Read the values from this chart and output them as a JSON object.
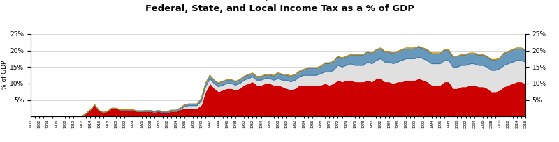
{
  "title": "Federal, State, and Local Income Tax as a % of GDP",
  "ylabel": "% of GDP",
  "ylim": [
    0,
    25
  ],
  "year_start": 1900,
  "year_end": 2016,
  "colors": {
    "federal_income": "#CC0000",
    "federal_payroll": "#E0E0E0",
    "state_income": "#4477AA",
    "local_income": "#E8A830"
  },
  "federal_income": [
    0.0,
    0.0,
    0.0,
    0.1,
    0.1,
    0.1,
    0.1,
    0.1,
    0.1,
    0.1,
    0.1,
    0.1,
    0.1,
    0.9,
    2.0,
    3.5,
    1.8,
    1.2,
    1.5,
    2.5,
    2.5,
    2.0,
    2.0,
    2.0,
    1.8,
    1.5,
    1.5,
    1.5,
    1.5,
    1.3,
    1.5,
    1.2,
    1.2,
    1.5,
    1.5,
    2.0,
    2.5,
    2.5,
    2.5,
    2.5,
    3.5,
    7.5,
    10.0,
    8.5,
    7.5,
    8.0,
    8.5,
    8.5,
    8.0,
    8.5,
    9.5,
    10.0,
    10.5,
    9.5,
    9.5,
    10.0,
    10.0,
    9.5,
    9.5,
    9.0,
    8.5,
    8.0,
    8.5,
    9.5,
    9.5,
    9.5,
    9.5,
    9.5,
    9.5,
    10.0,
    9.5,
    10.0,
    11.0,
    10.5,
    11.0,
    11.0,
    10.5,
    10.5,
    10.5,
    11.0,
    10.5,
    11.5,
    11.5,
    10.5,
    10.5,
    10.0,
    10.5,
    10.5,
    11.0,
    11.0,
    11.0,
    11.5,
    11.0,
    10.5,
    9.5,
    9.5,
    9.5,
    10.5,
    10.5,
    8.5,
    8.5,
    9.0,
    9.0,
    9.5,
    9.5,
    9.0,
    9.0,
    8.5,
    7.5,
    7.5,
    8.0,
    9.0,
    9.5,
    10.0,
    10.5,
    10.5,
    10.0
  ],
  "federal_payroll": [
    0.0,
    0.0,
    0.0,
    0.0,
    0.0,
    0.0,
    0.0,
    0.0,
    0.0,
    0.0,
    0.0,
    0.0,
    0.0,
    0.0,
    0.0,
    0.0,
    0.0,
    0.0,
    0.0,
    0.0,
    0.0,
    0.0,
    0.0,
    0.0,
    0.0,
    0.0,
    0.0,
    0.0,
    0.0,
    0.0,
    0.0,
    0.0,
    0.0,
    0.0,
    0.0,
    0.0,
    0.5,
    0.8,
    0.8,
    0.8,
    1.2,
    1.5,
    1.5,
    1.5,
    1.5,
    1.5,
    1.5,
    1.5,
    1.5,
    1.5,
    1.5,
    1.5,
    1.5,
    1.5,
    1.5,
    1.5,
    1.5,
    1.5,
    2.0,
    2.0,
    2.5,
    2.5,
    2.5,
    2.5,
    3.0,
    3.0,
    3.0,
    3.0,
    3.5,
    3.5,
    4.0,
    4.0,
    4.5,
    4.5,
    4.5,
    5.0,
    5.0,
    5.0,
    5.0,
    5.5,
    5.5,
    5.5,
    6.0,
    6.0,
    6.0,
    6.0,
    6.0,
    6.5,
    6.5,
    6.5,
    6.5,
    6.5,
    6.5,
    6.5,
    6.5,
    6.5,
    6.5,
    6.5,
    6.5,
    6.5,
    6.5,
    6.5,
    6.5,
    6.5,
    6.5,
    6.5,
    6.5,
    6.5,
    6.5,
    6.5,
    6.5,
    6.5,
    6.5,
    6.5,
    6.5,
    6.5,
    6.5
  ],
  "state_income": [
    0.0,
    0.0,
    0.0,
    0.0,
    0.0,
    0.0,
    0.0,
    0.0,
    0.0,
    0.0,
    0.0,
    0.0,
    0.0,
    0.0,
    0.0,
    0.0,
    0.0,
    0.0,
    0.0,
    0.0,
    0.0,
    0.0,
    0.1,
    0.1,
    0.2,
    0.2,
    0.2,
    0.3,
    0.3,
    0.3,
    0.3,
    0.3,
    0.3,
    0.4,
    0.4,
    0.5,
    0.5,
    0.5,
    0.5,
    0.5,
    0.8,
    1.0,
    1.0,
    1.0,
    1.0,
    1.0,
    1.0,
    1.0,
    1.0,
    1.0,
    1.0,
    1.0,
    1.0,
    1.0,
    1.0,
    1.0,
    1.0,
    1.2,
    1.5,
    1.5,
    1.5,
    1.5,
    1.5,
    1.5,
    1.5,
    2.0,
    2.0,
    2.0,
    2.0,
    2.5,
    2.5,
    2.5,
    2.5,
    2.5,
    2.5,
    2.5,
    3.0,
    3.0,
    3.0,
    3.0,
    3.0,
    3.0,
    3.0,
    3.0,
    3.0,
    3.0,
    3.0,
    3.0,
    3.0,
    3.0,
    3.0,
    3.0,
    3.0,
    3.0,
    3.0,
    3.0,
    3.0,
    3.0,
    3.0,
    3.0,
    3.0,
    3.0,
    3.0,
    3.0,
    3.0,
    3.0,
    3.0,
    3.0,
    3.0,
    3.0,
    3.0,
    3.5,
    3.5,
    3.5,
    3.5,
    3.5,
    3.5
  ],
  "local_income": [
    0.0,
    0.0,
    0.0,
    0.0,
    0.0,
    0.0,
    0.0,
    0.0,
    0.0,
    0.0,
    0.0,
    0.0,
    0.0,
    0.0,
    0.0,
    0.0,
    0.0,
    0.0,
    0.0,
    0.0,
    0.0,
    0.0,
    0.0,
    0.0,
    0.0,
    0.0,
    0.0,
    0.0,
    0.0,
    0.0,
    0.0,
    0.0,
    0.0,
    0.0,
    0.0,
    0.0,
    0.0,
    0.0,
    0.0,
    0.0,
    0.0,
    0.0,
    0.0,
    0.0,
    0.2,
    0.2,
    0.2,
    0.2,
    0.2,
    0.2,
    0.2,
    0.2,
    0.2,
    0.2,
    0.2,
    0.2,
    0.2,
    0.3,
    0.3,
    0.3,
    0.3,
    0.3,
    0.3,
    0.3,
    0.3,
    0.3,
    0.3,
    0.3,
    0.3,
    0.3,
    0.3,
    0.3,
    0.3,
    0.3,
    0.3,
    0.3,
    0.3,
    0.3,
    0.3,
    0.3,
    0.3,
    0.3,
    0.3,
    0.3,
    0.3,
    0.3,
    0.3,
    0.3,
    0.3,
    0.3,
    0.3,
    0.3,
    0.3,
    0.3,
    0.3,
    0.3,
    0.3,
    0.3,
    0.3,
    0.3,
    0.3,
    0.3,
    0.3,
    0.3,
    0.3,
    0.3,
    0.3,
    0.3,
    0.3,
    0.3,
    0.3,
    0.3,
    0.3,
    0.3,
    0.3,
    0.3,
    0.3
  ]
}
